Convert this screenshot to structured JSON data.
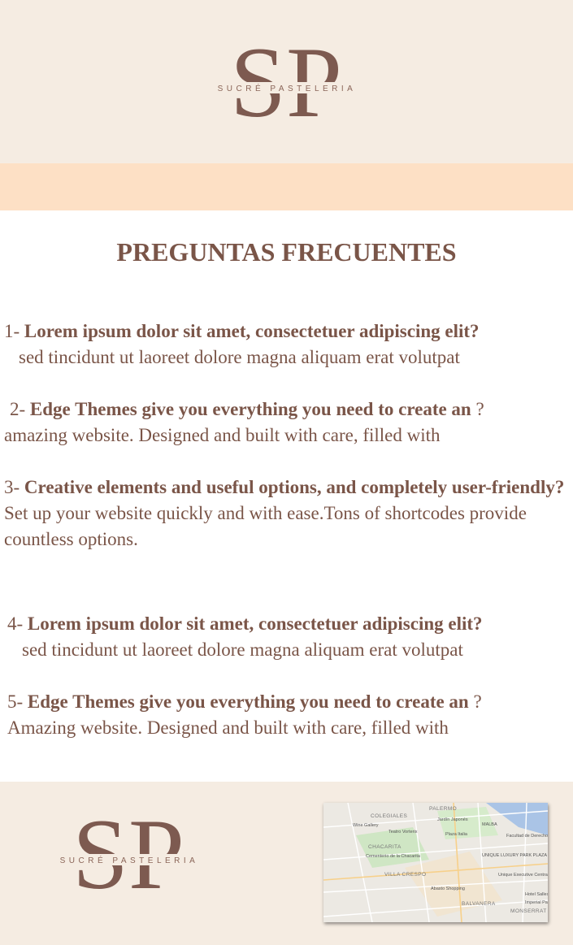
{
  "header": {
    "logo": {
      "monogram": "SP",
      "brand": "SUCRÉ PASTELERIA"
    }
  },
  "faq": {
    "title": "PREGUNTAS FRECUENTES",
    "items": [
      {
        "number": "1-",
        "question": "Lorem ipsum dolor sit amet, consectetuer adipiscing elit?",
        "answer": "sed tincidunt ut laoreet dolore magna aliquam erat volutpat"
      },
      {
        "number": "2-",
        "question": "Edge Themes give you everything you need to create an",
        "question_end": "?",
        "answer": "amazing website. Designed and built with care, filled with"
      },
      {
        "number": "3-",
        "question": "Creative elements and useful options, and completely user-friendly?",
        "answer": "Set up your website quickly and with ease.Tons of shortcodes provide countless options."
      },
      {
        "number": "4-",
        "question": "Lorem ipsum dolor sit amet, consectetuer adipiscing elit?",
        "answer": "sed tincidunt ut laoreet dolore magna aliquam erat volutpat"
      },
      {
        "number": "5-",
        "question": "Edge Themes give you everything you need to create an",
        "question_end": "?",
        "answer": "Amazing website. Designed and built with care, filled with"
      }
    ]
  },
  "footer": {
    "logo": {
      "monogram": "SP",
      "brand": "SUCRÉ PASTELERIA"
    },
    "map": {
      "labels": [
        "PALERMO",
        "COLEGIALES",
        "Jardín Japonés",
        "MALBA",
        "Wine Gallery",
        "Teatro Vorterix",
        "Plaza Italia",
        "Facultad de Derecho",
        "CHACARITA",
        "Cementerio de la Chacarita",
        "UNIQUE LUXURY PARK PLAZA",
        "VILLA CRESPO",
        "Unique Executive Central",
        "Abasto Shopping",
        "Hotel Salles",
        "BALVANERA",
        "Imperial Park",
        "MONSERRAT"
      ]
    }
  }
}
